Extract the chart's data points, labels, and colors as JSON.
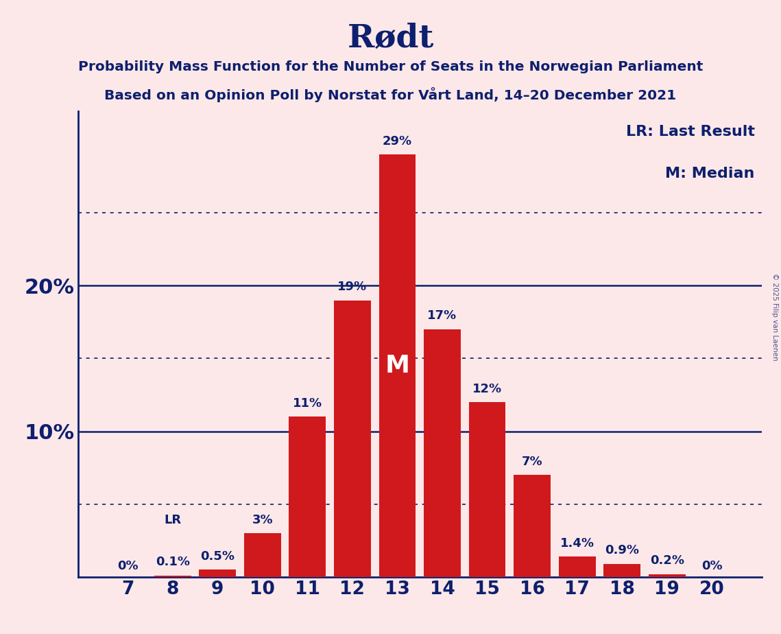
{
  "title": "Rødt",
  "subtitle1": "Probability Mass Function for the Number of Seats in the Norwegian Parliament",
  "subtitle2": "Based on an Opinion Poll by Norstat for Vårt Land, 14–20 December 2021",
  "watermark": "© 2025 Filip van Laenen",
  "seats": [
    7,
    8,
    9,
    10,
    11,
    12,
    13,
    14,
    15,
    16,
    17,
    18,
    19,
    20
  ],
  "probs": [
    0.0,
    0.1,
    0.5,
    3.0,
    11.0,
    19.0,
    29.0,
    17.0,
    12.0,
    7.0,
    1.4,
    0.9,
    0.2,
    0.0
  ],
  "prob_labels": [
    "0%",
    "0.1%",
    "0.5%",
    "3%",
    "11%",
    "19%",
    "29%",
    "17%",
    "12%",
    "7%",
    "1.4%",
    "0.9%",
    "0.2%",
    "0%"
  ],
  "bar_color": "#d0191c",
  "background_color": "#fce8e8",
  "text_color": "#0d1f6e",
  "median_seat": 13,
  "median_label": "M",
  "lr_seat": 8,
  "lr_label": "LR",
  "legend_lr": "LR: Last Result",
  "legend_m": "M: Median",
  "ylim": [
    0,
    32
  ],
  "dotted_lines": [
    5,
    15,
    25
  ],
  "solid_lines": [
    10,
    20
  ]
}
